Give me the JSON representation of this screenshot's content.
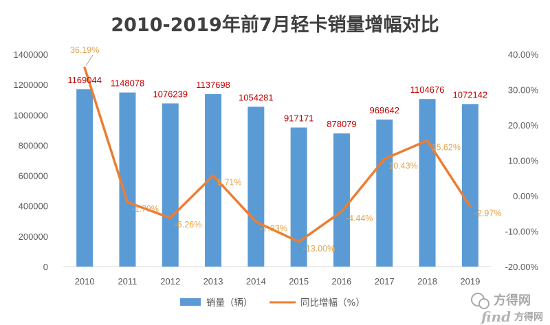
{
  "chart_data": {
    "type": "bar+line",
    "title": "2010-2019年前7月轻卡销量增幅对比",
    "categories": [
      "2010",
      "2011",
      "2012",
      "2013",
      "2014",
      "2015",
      "2016",
      "2017",
      "2018",
      "2019"
    ],
    "series": [
      {
        "name": "销量（辆）",
        "type": "bar",
        "axis": "left",
        "values": [
          1169044,
          1148078,
          1076239,
          1137698,
          1054281,
          917171,
          878079,
          969642,
          1104676,
          1072142
        ],
        "labels": [
          "1169044",
          "1148078",
          "1076239",
          "1137698",
          "1054281",
          "917171",
          "878079",
          "969642",
          "1104676",
          "1072142"
        ]
      },
      {
        "name": "同比增幅（%）",
        "type": "line",
        "axis": "right",
        "values": [
          36.19,
          -1.79,
          -6.26,
          5.71,
          -7.33,
          -13.0,
          -4.44,
          10.43,
          15.62,
          -2.97
        ],
        "labels": [
          "36.19%",
          "-1.79%",
          "-6.26%",
          "5.71%",
          "-7.33%",
          "-13.00%",
          "-4.44%",
          "10.43%",
          "15.62%",
          "-2.97%"
        ]
      }
    ],
    "y_left": {
      "min": 0,
      "max": 1400000,
      "ticks": [
        "0",
        "200000",
        "400000",
        "600000",
        "800000",
        "1000000",
        "1200000",
        "1400000"
      ]
    },
    "y_right": {
      "min": -20,
      "max": 40,
      "ticks": [
        "-20.00%",
        "-10.00%",
        "0.00%",
        "10.00%",
        "20.00%",
        "30.00%",
        "40.00%"
      ]
    },
    "legend_position": "bottom",
    "grid": false,
    "colors": {
      "bar": "#5b9bd5",
      "line": "#ed7d31",
      "bar_label": "#c00000",
      "line_label": "#e6a34a"
    }
  },
  "watermark": {
    "brand": "方得网",
    "site": "find",
    "site_suffix": "方得网"
  }
}
